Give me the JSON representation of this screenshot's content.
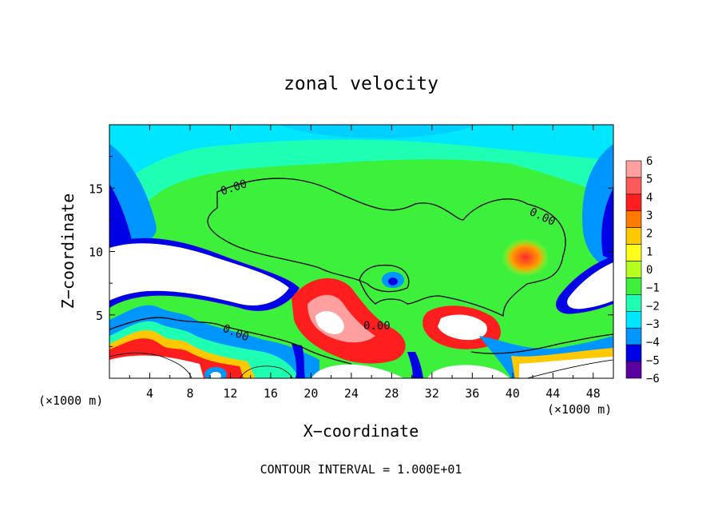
{
  "chart_data": {
    "type": "heatmap",
    "title": "zonal velocity",
    "xlabel": "X−coordinate",
    "ylabel": "Z−coordinate",
    "x_units": "(×1000 m)",
    "xlim": [
      0,
      50
    ],
    "ylim": [
      0,
      20
    ],
    "x_ticks": [
      4,
      8,
      12,
      16,
      20,
      24,
      28,
      32,
      36,
      40,
      44,
      48
    ],
    "y_ticks": [
      5,
      10,
      15
    ],
    "colorbar": {
      "levels": [
        6,
        5,
        4,
        3,
        2,
        1,
        0,
        -1,
        -2,
        -3,
        -4,
        -5,
        -6
      ],
      "colors": [
        "#ff9fa0",
        "#ff5a5a",
        "#ff1e1e",
        "#ff7a00",
        "#ffc800",
        "#ffff1e",
        "#b4ff1e",
        "#3cf03c",
        "#1effb4",
        "#00e6ff",
        "#0096ff",
        "#0000e6",
        "#5a00a0"
      ]
    },
    "contour_labels": [
      "0.00",
      "0.00",
      "0.00",
      "0.00"
    ],
    "footer": "CONTOUR INTERVAL = 1.000E+01"
  }
}
